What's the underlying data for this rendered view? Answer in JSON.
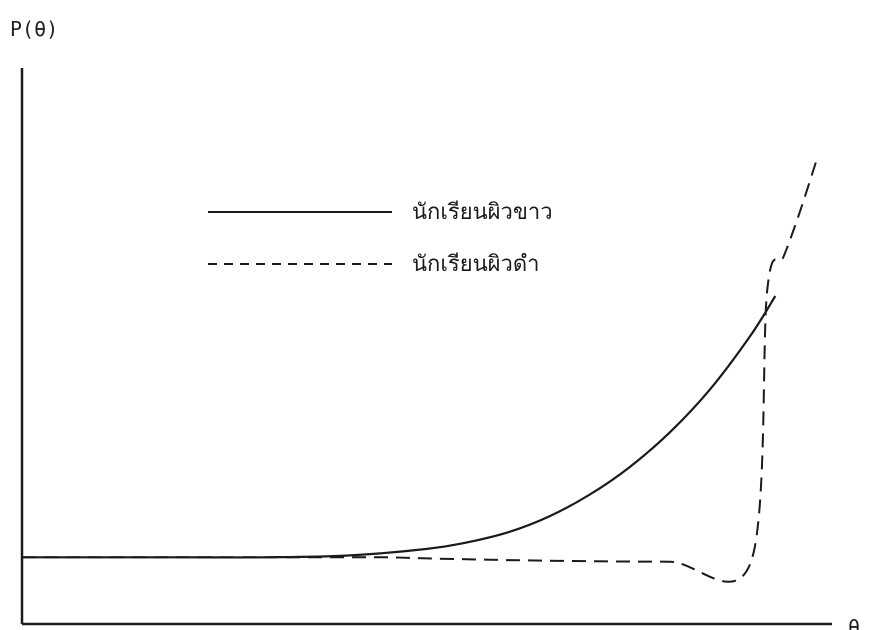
{
  "chart_data": {
    "type": "line",
    "title": "",
    "ylabel": "P(θ)",
    "xlabel": "θ",
    "xlim": [
      0,
      100
    ],
    "ylim": [
      0,
      100
    ],
    "grid": false,
    "legend_position": "top-center",
    "series": [
      {
        "name": "นักเรียนผิวขาว",
        "style": "solid",
        "x": [
          0,
          10,
          20,
          30,
          40,
          50,
          55,
          60,
          65,
          70,
          75,
          80,
          85,
          90,
          93
        ],
        "y": [
          12,
          12,
          12,
          12,
          12.3,
          13.5,
          14.7,
          16.5,
          19.3,
          23.2,
          28.2,
          34.5,
          42.3,
          52,
          59
        ]
      },
      {
        "name": "นักเรียนผิวดำ",
        "style": "dashed",
        "x": [
          0,
          10,
          20,
          30,
          40,
          45,
          50,
          60,
          70,
          80,
          90,
          92,
          94,
          96,
          98
        ],
        "y": [
          12,
          12,
          12,
          12,
          12,
          12,
          11.8,
          11.5,
          11.3,
          11.2,
          11.2,
          60,
          66,
          74,
          83
        ]
      }
    ]
  },
  "colors": {
    "ink": "#1a1a1a"
  }
}
